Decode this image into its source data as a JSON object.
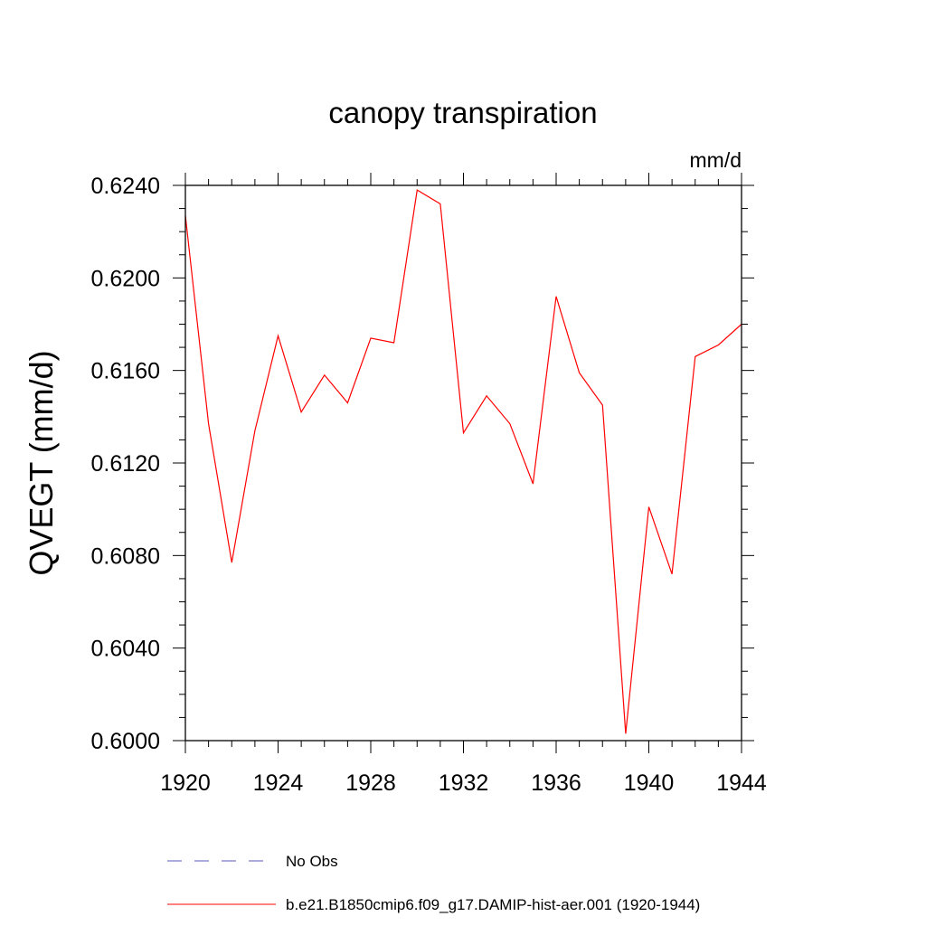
{
  "chart_data": {
    "type": "line",
    "title": "canopy transpiration",
    "units": "mm/d",
    "xlabel": "",
    "ylabel": "QVEGT  (mm/d)",
    "xlim": [
      1920,
      1944
    ],
    "ylim": [
      0.6,
      0.624
    ],
    "x_ticks": [
      "1920",
      "1924",
      "1928",
      "1932",
      "1936",
      "1940",
      "1944"
    ],
    "y_ticks": [
      "0.6000",
      "0.6040",
      "0.6080",
      "0.6120",
      "0.6160",
      "0.6200",
      "0.6240"
    ],
    "grid": false,
    "legend_position": "bottom",
    "legend": [
      {
        "name": "No Obs",
        "style": "dashed",
        "color": "#5a5ab4"
      },
      {
        "name": "b.e21.B1850cmip6.f09_g17.DAMIP-hist-aer.001 (1920-1944)",
        "style": "solid",
        "color": "#ff0000"
      }
    ],
    "series": [
      {
        "name": "b.e21.B1850cmip6.f09_g17.DAMIP-hist-aer.001 (1920-1944)",
        "color": "#ff0000",
        "x": [
          1920,
          1921,
          1922,
          1923,
          1924,
          1925,
          1926,
          1927,
          1928,
          1929,
          1930,
          1931,
          1932,
          1933,
          1934,
          1935,
          1936,
          1937,
          1938,
          1939,
          1940,
          1941,
          1942,
          1943,
          1944
        ],
        "values": [
          0.6227,
          0.6137,
          0.6077,
          0.6134,
          0.6175,
          0.6142,
          0.6158,
          0.6146,
          0.6174,
          0.6172,
          0.6238,
          0.6232,
          0.6133,
          0.6149,
          0.6137,
          0.6111,
          0.6192,
          0.6159,
          0.6145,
          0.6003,
          0.6101,
          0.6072,
          0.6166,
          0.6171,
          0.618
        ]
      }
    ]
  }
}
